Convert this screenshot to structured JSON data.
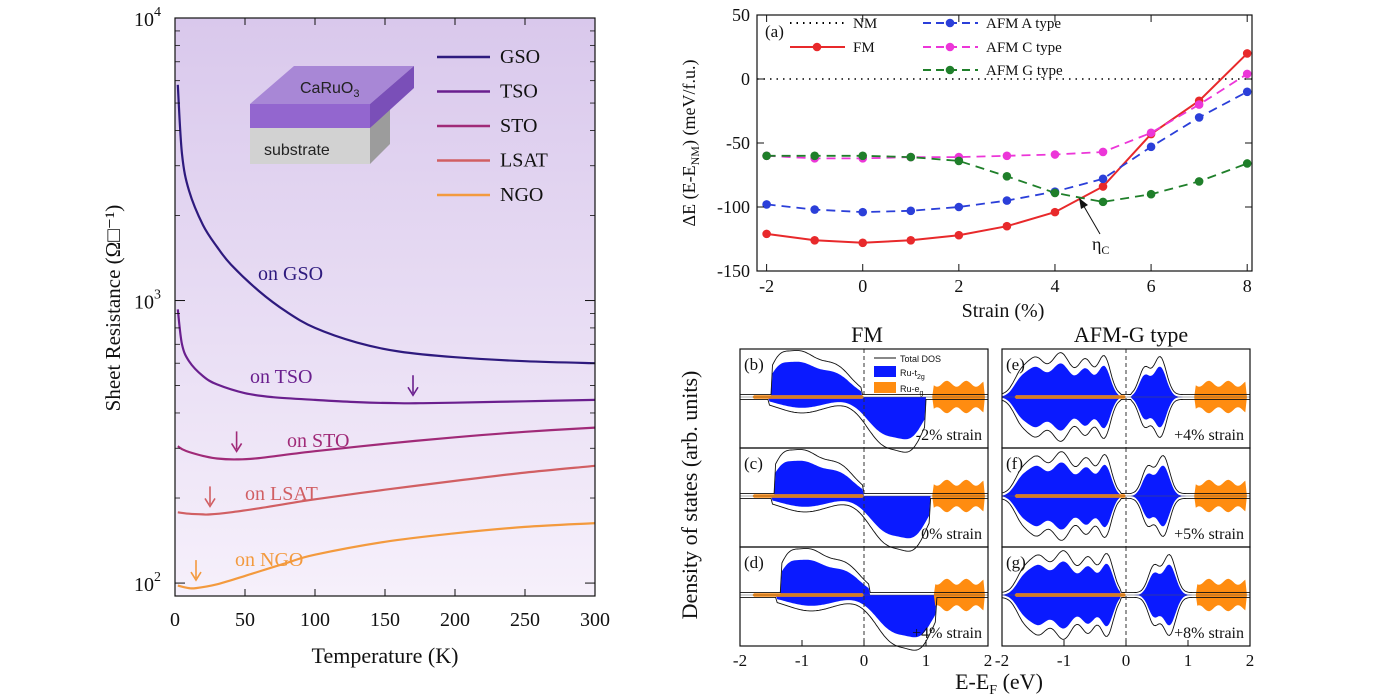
{
  "colors": {
    "GSO": "#2e1a7e",
    "TSO": "#6a1f8e",
    "STO": "#a02a78",
    "LSAT": "#d15f63",
    "NGO": "#f39a3e",
    "NM": "#000000",
    "FM": "#e8292b",
    "AFM_A": "#2b3fd9",
    "AFM_C": "#ec36d8",
    "AFM_G": "#1f7f2a",
    "ru_t2g": "#0a1aff",
    "ru_eg": "#ff8c10",
    "bg_top": "#d9c8ec",
    "bg_bottom": "#f6f0fb"
  },
  "chart_data": [
    {
      "id": "sheet-resistance",
      "type": "line",
      "xlabel": "Temperature (K)",
      "ylabel": "Sheet Resistance (Ω□⁻¹)",
      "yscale": "log",
      "xlim": [
        0,
        300
      ],
      "ylim": [
        90,
        10000
      ],
      "x_ticks": [
        "0",
        "50",
        "100",
        "150",
        "200",
        "250",
        "300"
      ],
      "y_ticks": [
        {
          "base": "10",
          "exp": "2",
          "value": 100
        },
        {
          "base": "10",
          "exp": "3",
          "value": 1000
        },
        {
          "base": "10",
          "exp": "4",
          "value": 10000
        }
      ],
      "legend": [
        "GSO",
        "TSO",
        "STO",
        "LSAT",
        "NGO"
      ],
      "inset": {
        "film": "CaRuO",
        "film_sub": "3",
        "substrate": "substrate"
      },
      "series": [
        {
          "name": "GSO",
          "label": "on GSO",
          "x": [
            2,
            5,
            10,
            20,
            30,
            40,
            60,
            80,
            100,
            130,
            160,
            200,
            250,
            300
          ],
          "y": [
            5800,
            3300,
            2450,
            1850,
            1550,
            1340,
            1080,
            910,
            800,
            710,
            660,
            630,
            610,
            600
          ]
        },
        {
          "name": "TSO",
          "label": "on TSO",
          "x": [
            2,
            5,
            10,
            20,
            30,
            50,
            70,
            100,
            130,
            160,
            175,
            200,
            250,
            300
          ],
          "y": [
            930,
            700,
            610,
            540,
            505,
            470,
            455,
            445,
            437,
            433,
            433,
            435,
            440,
            445
          ]
        },
        {
          "name": "STO",
          "label": "on STO",
          "x": [
            2,
            5,
            10,
            20,
            30,
            44,
            60,
            100,
            150,
            200,
            250,
            300
          ],
          "y": [
            305,
            298,
            291,
            282,
            276,
            274,
            277,
            293,
            311,
            328,
            343,
            355
          ]
        },
        {
          "name": "LSAT",
          "label": "on LSAT",
          "x": [
            2,
            10,
            20,
            25,
            40,
            60,
            100,
            150,
            200,
            250,
            300
          ],
          "y": [
            178,
            176,
            175,
            175,
            178,
            184,
            198,
            214,
            230,
            246,
            260
          ]
        },
        {
          "name": "NGO",
          "label": "on NGO",
          "x": [
            2,
            10,
            15,
            30,
            50,
            80,
            100,
            150,
            200,
            250,
            300
          ],
          "y": [
            98,
            96,
            96,
            99,
            106,
            118,
            126,
            140,
            150,
            158,
            163
          ]
        }
      ],
      "arrows": [
        {
          "series": "TSO",
          "x": 170
        },
        {
          "series": "STO",
          "x": 44
        },
        {
          "series": "LSAT",
          "x": 25
        },
        {
          "series": "NGO",
          "x": 15
        }
      ]
    },
    {
      "id": "energy-vs-strain",
      "type": "line",
      "panel": "(a)",
      "xlabel": "Strain (%)",
      "ylabel_parts": [
        "ΔE (E-E",
        "NM",
        ")  (meV/f.u.)"
      ],
      "xlim": [
        -2.2,
        8.1
      ],
      "ylim": [
        -150,
        50
      ],
      "x_ticks": [
        "-2",
        "0",
        "2",
        "4",
        "6",
        "8"
      ],
      "y_ticks": [
        "50",
        "0",
        "-50",
        "-100",
        "-150"
      ],
      "annotation": {
        "text": "η",
        "sub": "C",
        "x": 4.5,
        "y": -100
      },
      "series": [
        {
          "name": "NM",
          "key": "NM",
          "x": [
            -2,
            8
          ],
          "y": [
            0,
            0
          ],
          "style": "dotted"
        },
        {
          "name": "FM",
          "key": "FM",
          "x": [
            -2,
            -1,
            0,
            1,
            2,
            3,
            4,
            5,
            6,
            7,
            8
          ],
          "y": [
            -121,
            -126,
            -128,
            -126,
            -122,
            -115,
            -104,
            -84,
            -43,
            -17,
            20
          ],
          "style": "solid"
        },
        {
          "name": "AFM A type",
          "key": "AFM_A",
          "x": [
            -2,
            -1,
            0,
            1,
            2,
            3,
            4,
            5,
            6,
            7,
            8
          ],
          "y": [
            -98,
            -102,
            -104,
            -103,
            -100,
            -95,
            -88,
            -78,
            -53,
            -30,
            -10
          ],
          "style": "dashed"
        },
        {
          "name": "AFM C type",
          "key": "AFM_C",
          "x": [
            -2,
            -1,
            0,
            1,
            2,
            3,
            4,
            5,
            6,
            7,
            8
          ],
          "y": [
            -60,
            -62,
            -62,
            -61,
            -61,
            -60,
            -59,
            -57,
            -42,
            -20,
            4
          ],
          "style": "dashed"
        },
        {
          "name": "AFM G type",
          "key": "AFM_G",
          "x": [
            -2,
            -1,
            0,
            1,
            2,
            3,
            4,
            5,
            6,
            7,
            8
          ],
          "y": [
            -60,
            -60,
            -60,
            -61,
            -64,
            -76,
            -89,
            -96,
            -90,
            -80,
            -66
          ],
          "style": "dashed"
        }
      ]
    },
    {
      "id": "density-of-states",
      "type": "area",
      "column_titles": [
        "FM",
        "AFM-G type"
      ],
      "ylabel": "Density of states (arb. units)",
      "xlabel_parts": [
        "E-E",
        "F",
        " (eV)"
      ],
      "xlim": [
        -2,
        2
      ],
      "x_ticks": [
        "-2",
        "-1",
        "0",
        "1",
        "2"
      ],
      "legend": {
        "total": "Total DOS",
        "t2g": "Ru-t",
        "t2g_sub": "2g",
        "eg": "Ru-e",
        "eg_sub": "g"
      },
      "panels": [
        {
          "label": "(b)",
          "strain": "-2% strain",
          "column": 0,
          "row": 0,
          "kind": "FM",
          "shift": 0
        },
        {
          "label": "(c)",
          "strain": "0% strain",
          "column": 0,
          "row": 1,
          "kind": "FM",
          "shift": 0.05
        },
        {
          "label": "(d)",
          "strain": "+4% strain",
          "column": 0,
          "row": 2,
          "kind": "FM",
          "shift": 0.15
        },
        {
          "label": "(e)",
          "strain": "+4% strain",
          "column": 1,
          "row": 0,
          "kind": "AFM",
          "shift": 0
        },
        {
          "label": "(f)",
          "strain": "+5% strain",
          "column": 1,
          "row": 1,
          "kind": "AFM",
          "shift": 0.05
        },
        {
          "label": "(g)",
          "strain": "+8% strain",
          "column": 1,
          "row": 2,
          "kind": "AFM",
          "shift": 0.15
        }
      ]
    }
  ]
}
